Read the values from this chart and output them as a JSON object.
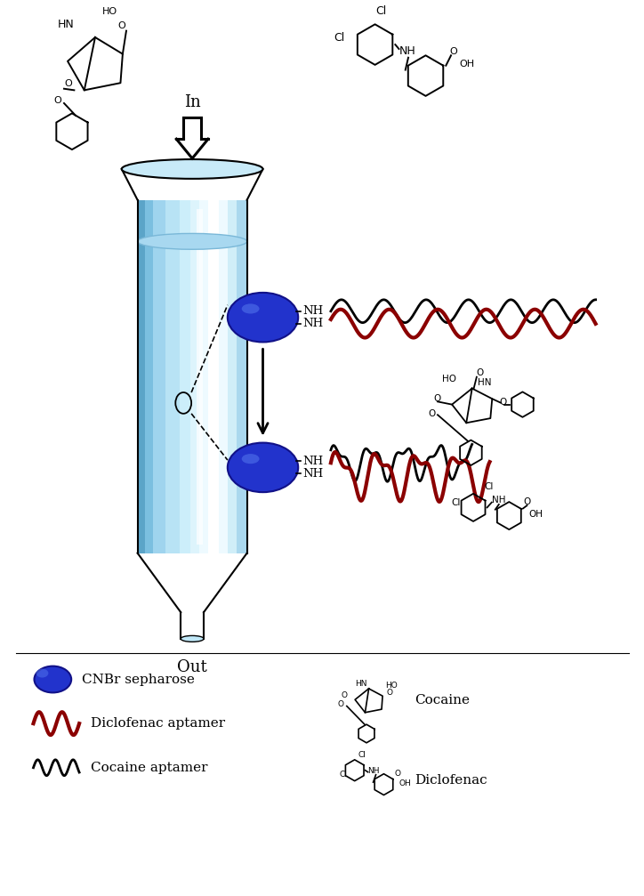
{
  "background_color": "#ffffff",
  "bead_color": "#2233cc",
  "bead_edge_color": "#111188",
  "diclofenac_aptamer_color": "#8b0000",
  "cocaine_aptamer_color": "#000000",
  "legend_items": [
    "CNBr sepharose",
    "Diclofenac aptamer",
    "Cocaine aptamer"
  ],
  "legend_right_items": [
    "Cocaine",
    "Diclofenac"
  ],
  "in_label": "In",
  "out_label": "Out"
}
